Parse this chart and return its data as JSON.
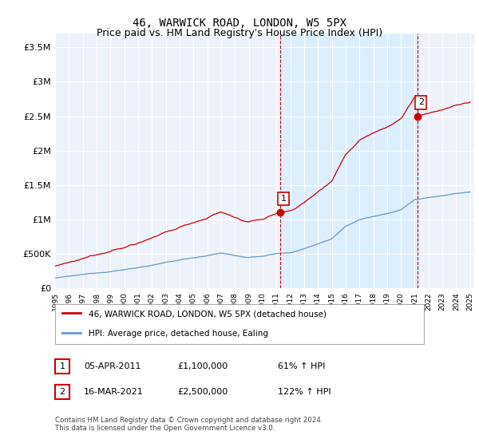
{
  "title": "46, WARWICK ROAD, LONDON, W5 5PX",
  "subtitle": "Price paid vs. HM Land Registry's House Price Index (HPI)",
  "ylim": [
    0,
    3700000
  ],
  "yticks": [
    0,
    500000,
    1000000,
    1500000,
    2000000,
    2500000,
    3000000,
    3500000
  ],
  "ytick_labels": [
    "£0",
    "£500K",
    "£1M",
    "£1.5M",
    "£2M",
    "£2.5M",
    "£3M",
    "£3.5M"
  ],
  "x_start_year": 1995,
  "x_end_year": 2025,
  "sale1_year": 2011.25,
  "sale1_price": 1100000,
  "sale1_label": "1",
  "sale2_year": 2021.2,
  "sale2_price": 2500000,
  "sale2_label": "2",
  "line_color_red": "#cc0000",
  "line_color_blue": "#6699cc",
  "vline_color": "#cc0000",
  "shade_color": "#ddeeff",
  "background_color": "#eef2fb",
  "legend_line1": "46, WARWICK ROAD, LONDON, W5 5PX (detached house)",
  "legend_line2": "HPI: Average price, detached house, Ealing",
  "table_row1": [
    "1",
    "05-APR-2011",
    "£1,100,000",
    "61% ↑ HPI"
  ],
  "table_row2": [
    "2",
    "16-MAR-2021",
    "£2,500,000",
    "122% ↑ HPI"
  ],
  "footer": "Contains HM Land Registry data © Crown copyright and database right 2024.\nThis data is licensed under the Open Government Licence v3.0.",
  "title_fontsize": 10,
  "subtitle_fontsize": 9
}
